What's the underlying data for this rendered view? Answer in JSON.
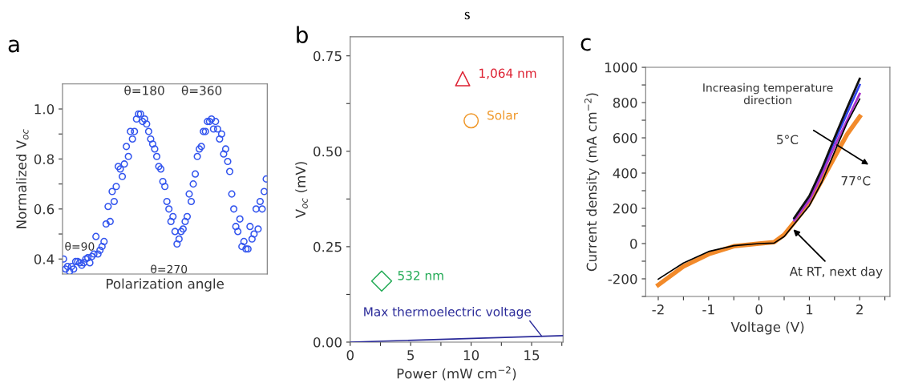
{
  "chart_data": [
    {
      "type": "scatter",
      "ylabel": "Normalized V$_{oc}$",
      "xlabel": "Polarization angle",
      "marker": "circle",
      "legend": false,
      "grid": false,
      "tick_labels": "y",
      "annotations": [
        "a",
        "θ=90",
        "θ=180",
        "θ=360",
        "θ=270"
      ],
      "ylim": [
        0.34,
        1.1
      ],
      "yticks": [
        0.4,
        {
          "value": 0.5,
          "label": null
        },
        0.6,
        {
          "value": 0.7,
          "label": null
        },
        0.8,
        {
          "value": 0.9,
          "label": null
        },
        {
          "value": 1.0,
          "label": "1.0"
        }
      ],
      "categories": [
        null,
        null,
        null,
        null,
        null,
        null,
        null,
        null,
        null,
        null,
        null,
        null,
        null,
        null,
        null,
        null,
        null,
        null,
        null,
        null,
        null,
        null,
        null,
        null,
        null,
        null,
        null,
        null,
        null,
        null,
        null,
        null,
        null,
        null,
        null,
        null,
        null,
        null,
        null,
        null,
        null,
        null,
        null,
        null,
        null,
        null,
        null,
        null,
        null,
        null,
        null,
        null,
        null,
        null,
        null,
        null,
        null,
        null,
        null,
        null,
        null,
        null,
        null,
        null,
        null,
        null,
        null,
        null,
        null,
        null,
        null,
        null,
        null,
        null,
        null,
        null,
        null,
        null,
        null,
        null,
        null,
        null,
        null,
        null,
        null,
        null,
        null,
        null,
        null,
        null,
        null,
        null,
        null,
        null,
        null,
        null,
        null,
        null,
        null,
        null,
        null
      ],
      "series": [
        {
          "color": "#3355ee",
          "values": [
            0.4,
            0.36,
            0.37,
            0.35,
            0.37,
            0.36,
            0.39,
            0.39,
            0.385,
            0.375,
            0.385,
            0.4,
            0.405,
            0.385,
            0.41,
            0.42,
            0.49,
            0.42,
            0.435,
            0.45,
            0.47,
            0.54,
            0.61,
            0.55,
            0.67,
            0.63,
            0.69,
            0.77,
            0.76,
            0.73,
            0.78,
            0.85,
            0.81,
            0.91,
            0.88,
            0.91,
            0.96,
            0.98,
            0.98,
            0.95,
            0.96,
            0.94,
            0.91,
            0.88,
            0.86,
            0.84,
            0.81,
            0.77,
            0.76,
            0.71,
            0.69,
            0.63,
            0.6,
            0.55,
            0.57,
            0.51,
            0.46,
            0.48,
            0.51,
            0.52,
            0.55,
            0.57,
            0.66,
            0.63,
            0.7,
            0.74,
            0.81,
            0.84,
            0.85,
            0.91,
            0.91,
            0.95,
            0.95,
            0.96,
            0.92,
            0.95,
            0.92,
            0.88,
            0.9,
            0.82,
            0.84,
            0.79,
            0.75,
            0.66,
            0.6,
            0.53,
            0.51,
            0.56,
            0.45,
            0.47,
            0.44,
            0.44,
            0.53,
            0.48,
            0.5,
            0.6,
            0.52,
            0.63,
            0.6,
            0.67,
            0.72
          ]
        }
      ]
    },
    {
      "type": "scatter",
      "title": "s",
      "ylabel": "V$_{oc}$ (mV)",
      "xlabel": "Power (mW cm$^{−2}$)",
      "legend": false,
      "grid": false,
      "annotations": [
        "b"
      ],
      "xlim": [
        0,
        17.6
      ],
      "xticks": [
        0,
        {
          "value": 2.5,
          "label": null
        },
        5,
        {
          "value": 7.5,
          "label": null
        },
        10,
        {
          "value": 12.5,
          "label": null
        },
        15,
        {
          "value": 17.5,
          "label": null
        }
      ],
      "ylim": [
        0,
        0.8
      ],
      "yticks": [
        {
          "value": 0,
          "label": "0.00"
        },
        {
          "value": 0.125,
          "label": null
        },
        {
          "value": 0.25,
          "label": "0.25"
        },
        {
          "value": 0.375,
          "label": null
        },
        {
          "value": 0.5,
          "label": "0.50"
        },
        {
          "value": 0.625,
          "label": null
        },
        {
          "value": 0.75,
          "label": "0.75"
        }
      ],
      "series": [
        {
          "name": "1,064 nm",
          "color": "#dd2233",
          "marker": "triangle",
          "x": [
            9.3
          ],
          "values": [
            0.69
          ]
        },
        {
          "name": "Solar",
          "color": "#f0982a",
          "marker": "circle",
          "x": [
            10
          ],
          "values": [
            0.58
          ]
        },
        {
          "name": "532 nm",
          "color": "#22aa55",
          "marker": "diamond",
          "x": [
            2.6
          ],
          "values": [
            0.16
          ]
        },
        {
          "name": "Max thermoelectric voltage",
          "type": "line",
          "color": "#2b2b99",
          "x": [
            0,
            17.6
          ],
          "values": [
            0,
            0.017
          ]
        }
      ]
    },
    {
      "type": "line",
      "xlabel": "Voltage (V)",
      "ylabel": "Current density (mA cm$^{−2}$)",
      "legend": false,
      "grid": false,
      "annotations": [
        "c",
        "Increasing temperature\ndirection",
        "5°C",
        "77°C",
        {
          "text": "At RT, next day",
          "x": 0.65,
          "y": 90
        }
      ],
      "xlim": [
        -2.25,
        2.6
      ],
      "xticks": [
        -2,
        {
          "value": -1.5,
          "label": null
        },
        -1,
        {
          "value": -0.5,
          "label": null
        },
        0,
        {
          "value": 0.5,
          "label": null
        },
        1,
        {
          "value": 1.5,
          "label": null
        },
        2,
        {
          "value": 2.5,
          "label": null
        }
      ],
      "ylim": [
        -300,
        1000
      ],
      "yticks": [
        {
          "value": -300,
          "label": null
        },
        -200,
        {
          "value": -100,
          "label": null
        },
        0,
        {
          "value": 100,
          "label": null
        },
        200,
        {
          "value": 300,
          "label": null
        },
        400,
        {
          "value": 500,
          "label": null
        },
        600,
        {
          "value": 700,
          "label": null
        },
        800,
        {
          "value": 900,
          "label": null
        },
        1000
      ],
      "x": [
        -2,
        -1.5,
        -1,
        -0.5,
        0,
        0.3,
        0.5,
        0.7,
        1,
        1.25,
        1.5,
        1.75,
        2
      ],
      "series": [
        {
          "color": "#f28a2a",
          "values": [
            -235,
            -130,
            -60,
            -15,
            0,
            8,
            50,
            120,
            230,
            360,
            490,
            620,
            720
          ]
        },
        {
          "color": "#3344ee",
          "values": [
            null,
            null,
            null,
            null,
            null,
            null,
            null,
            140,
            260,
            410,
            580,
            740,
            900
          ]
        },
        {
          "color": "#aa33cc",
          "values": [
            null,
            null,
            null,
            null,
            null,
            null,
            null,
            130,
            245,
            390,
            550,
            700,
            850
          ]
        },
        {
          "color": "#111111",
          "values": [
            null,
            null,
            null,
            null,
            null,
            null,
            null,
            145,
            270,
            425,
            600,
            770,
            935
          ]
        },
        {
          "color": "#000000",
          "x": [
            -2,
            -1.5,
            -1,
            -0.5,
            0,
            0.3,
            0.5,
            0.7,
            1,
            1.25,
            1.5,
            1.75,
            2
          ],
          "values": [
            -202,
            -110,
            -45,
            -12,
            0,
            3,
            40,
            110,
            215,
            350,
            520,
            685,
            820
          ]
        }
      ]
    }
  ]
}
